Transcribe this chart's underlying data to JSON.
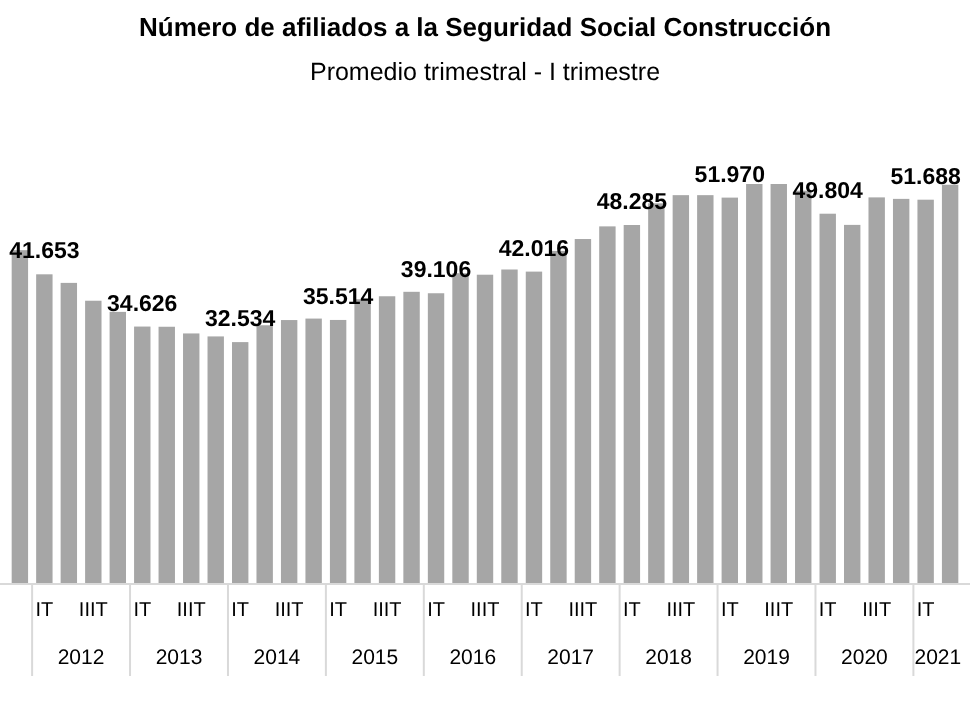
{
  "chart_data": {
    "type": "bar",
    "title": "Número de afiliados a la Seguridad Social Construcción",
    "subtitle": "Promedio trimestral - I trimestre",
    "categories": [
      null,
      "IT",
      null,
      "IIIT",
      null,
      "IT",
      null,
      "IIIT",
      null,
      "IT",
      null,
      "IIIT",
      null,
      "IT",
      null,
      "IIIT",
      null,
      "IT",
      null,
      "IIIT",
      null,
      "IT",
      null,
      "IIIT",
      null,
      "IT",
      null,
      "IIIT",
      null,
      "IT",
      null,
      "IIIT",
      null,
      "IT",
      null,
      "IIIT",
      null,
      "IT",
      null
    ],
    "values": [
      44900,
      41653,
      40500,
      38100,
      36600,
      34626,
      34600,
      33700,
      33300,
      32534,
      34800,
      35500,
      35700,
      35514,
      38300,
      38700,
      39300,
      39106,
      41800,
      41600,
      42300,
      42016,
      44800,
      46400,
      48100,
      48285,
      51200,
      52300,
      52300,
      51970,
      53800,
      53800,
      52900,
      49804,
      48300,
      52000,
      51800,
      51688,
      53700
    ],
    "value_labels": [
      null,
      "41.653",
      null,
      null,
      null,
      "34.626",
      null,
      null,
      null,
      "32.534",
      null,
      null,
      null,
      "35.514",
      null,
      null,
      null,
      "39.106",
      null,
      null,
      null,
      "42.016",
      null,
      null,
      null,
      "48.285",
      null,
      null,
      null,
      "51.970",
      null,
      null,
      null,
      "49.804",
      null,
      null,
      null,
      "51.688",
      null
    ],
    "color": "#a6a6a6",
    "annotations": [
      "2012",
      "2013",
      "2014",
      "2015",
      "2016",
      "2017",
      "2018",
      "2019",
      "2020",
      "2021"
    ]
  }
}
